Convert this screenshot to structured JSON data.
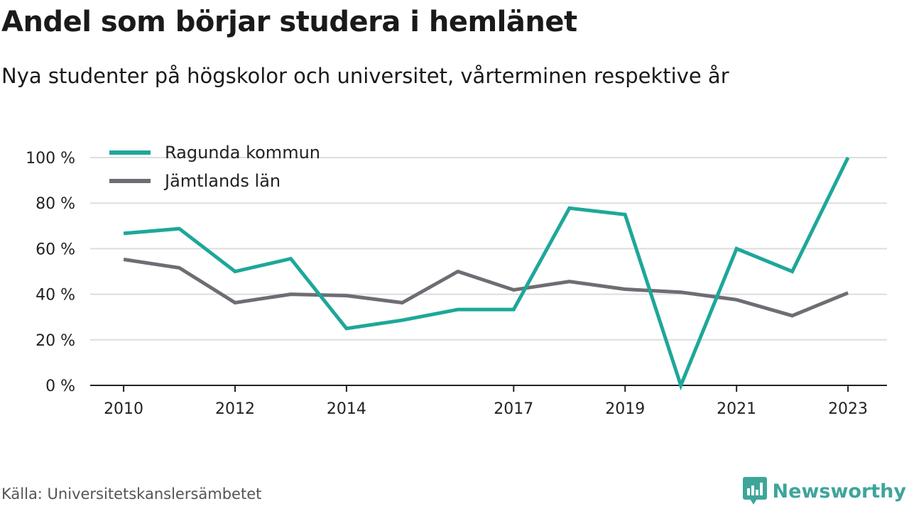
{
  "header": {
    "title": "Andel som börjar studera i hemlänet",
    "subtitle": "Nya studenter på högskolor och universitet, vårterminen respektive år"
  },
  "footer": {
    "source": "Källa: Universitetskanslersämbetet",
    "brand": "Newsworthy",
    "brand_icon": "bar-chart-speech-bubble-icon"
  },
  "colors": {
    "ragunda": "#1ea79a",
    "jamtland": "#6e6d73",
    "grid": "#dddddd",
    "axis": "#222222",
    "brand": "#3ea59b"
  },
  "chart_data": {
    "type": "line",
    "title": "Andel som börjar studera i hemlänet",
    "subtitle": "Nya studenter på högskolor och universitet, vårterminen respektive år",
    "xlabel": "",
    "ylabel": "",
    "x": [
      2010,
      2011,
      2012,
      2013,
      2014,
      2015,
      2016,
      2017,
      2018,
      2019,
      2020,
      2021,
      2022,
      2023
    ],
    "xticks": [
      2010,
      2012,
      2014,
      2017,
      2019,
      2021,
      2023
    ],
    "xtick_labels": [
      "2010",
      "2012",
      "2014",
      "2017",
      "2019",
      "2021",
      "2023"
    ],
    "xlim": [
      2009.4,
      2023.7
    ],
    "yticks": [
      0,
      20,
      40,
      60,
      80,
      100
    ],
    "ytick_labels": [
      "0 %",
      "20 %",
      "40 %",
      "60 %",
      "80 %",
      "100 %"
    ],
    "ylim": [
      0,
      100
    ],
    "grid": true,
    "legend_position": "top-left",
    "series": [
      {
        "name": "Ragunda kommun",
        "color": "#1ea79a",
        "values": [
          66.7,
          68.8,
          50.0,
          55.6,
          25.0,
          28.6,
          33.3,
          33.3,
          77.8,
          75.0,
          0,
          60.0,
          50.0,
          100
        ]
      },
      {
        "name": "Jämtlands län",
        "color": "#6e6d73",
        "values": [
          55.3,
          51.6,
          36.3,
          40.0,
          39.4,
          36.3,
          50.0,
          41.9,
          45.6,
          42.2,
          40.9,
          37.6,
          30.6,
          40.6
        ]
      }
    ]
  }
}
